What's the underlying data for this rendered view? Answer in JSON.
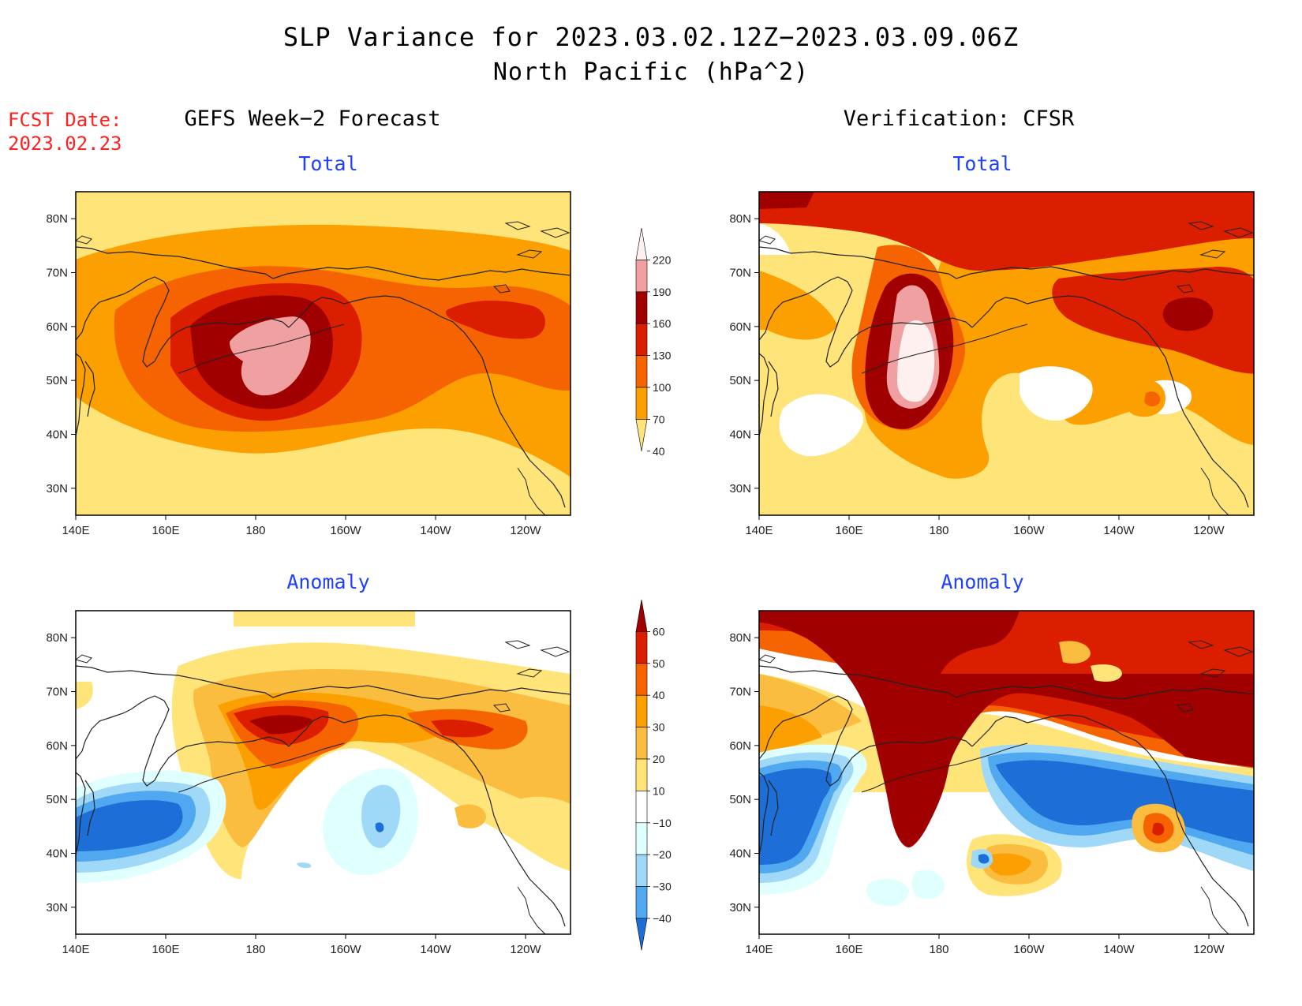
{
  "title": "SLP Variance for 2023.03.02.12Z−2023.03.09.06Z",
  "subtitle": "North Pacific (hPa^2)",
  "fcst_date_label": "FCST Date:",
  "fcst_date_value": "2023.02.23",
  "columns": [
    {
      "title": "GEFS Week−2 Forecast"
    },
    {
      "title": "Verification: CFSR"
    }
  ],
  "panels": [
    {
      "id": "tl",
      "title": "Total"
    },
    {
      "id": "tr",
      "title": "Total"
    },
    {
      "id": "bl",
      "title": "Anomaly"
    },
    {
      "id": "br",
      "title": "Anomaly"
    }
  ],
  "axes": {
    "lat_labels": [
      "80N",
      "70N",
      "60N",
      "50N",
      "40N",
      "30N"
    ],
    "lon_labels": [
      "140E",
      "160E",
      "180",
      "160W",
      "140W",
      "120W"
    ],
    "lat_range": [
      25,
      85
    ],
    "lon_range_deg_east": [
      140,
      250
    ]
  },
  "colorbar_total": {
    "levels": [
      "220",
      "190",
      "160",
      "130",
      "100",
      "70",
      "40"
    ],
    "colors": [
      "#fff0f0",
      "#f0a0a0",
      "#a00000",
      "#dc1e00",
      "#f56400",
      "#fba000",
      "#ffe479"
    ]
  },
  "colorbar_anomaly": {
    "levels": [
      "60",
      "50",
      "40",
      "30",
      "20",
      "10",
      "−10",
      "−20",
      "−30",
      "−40"
    ],
    "colors": [
      "#a00000",
      "#dc1e00",
      "#f56400",
      "#fba000",
      "#fbbd40",
      "#ffe479",
      "#ffffff",
      "#e0ffff",
      "#a0d8f8",
      "#50a8f0",
      "#1e6ed8"
    ]
  }
}
